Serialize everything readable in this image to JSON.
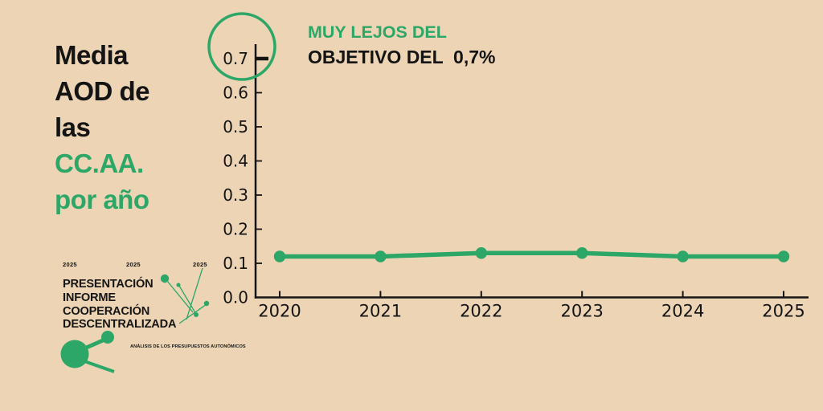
{
  "colors": {
    "background": "#ecd4b4",
    "green": "#2ca768",
    "ink": "#141414"
  },
  "title": {
    "lines": [
      {
        "text": "Media",
        "color": "black"
      },
      {
        "text": "AOD de",
        "color": "black"
      },
      {
        "text": "las",
        "color": "black"
      },
      {
        "text": "CC.AA.",
        "color": "green"
      },
      {
        "text": "por año",
        "color": "green"
      }
    ]
  },
  "annotation": {
    "line1": "MUY LEJOS DEL",
    "line2": "OBJETIVO DEL  0,7%"
  },
  "logo": {
    "years": [
      "2025",
      "2025",
      "2025"
    ],
    "lines": [
      "PRESENTACIÓN",
      "INFORME",
      "COOPERACIÓN",
      "DESCENTRALIZADA"
    ],
    "tagline": "ANÁLISIS DE LOS PRESUPUESTOS AUTONÓMICOS"
  },
  "chart_data": {
    "type": "line",
    "title": "Media AOD de las CC.AA. por año",
    "categories": [
      "2020",
      "2021",
      "2022",
      "2023",
      "2024",
      "2025"
    ],
    "series": [
      {
        "name": "Media AOD de las CC.AA.",
        "values": [
          0.12,
          0.12,
          0.13,
          0.13,
          0.12,
          0.12
        ]
      }
    ],
    "yticks": [
      0.0,
      0.1,
      0.2,
      0.3,
      0.4,
      0.5,
      0.6,
      0.7
    ],
    "ytick_labels": [
      "0.0",
      "0.1",
      "0.2",
      "0.3",
      "0.4",
      "0.5",
      "0.6",
      "0.7"
    ],
    "ylim": [
      0.0,
      0.7
    ],
    "target_value": 0.7,
    "annotation": "MUY LEJOS DEL OBJETIVO DEL 0,7%",
    "xlabel": "",
    "ylabel": "",
    "grid": false,
    "legend_position": "none",
    "line_color": "#2ca768",
    "marker": "circle"
  }
}
